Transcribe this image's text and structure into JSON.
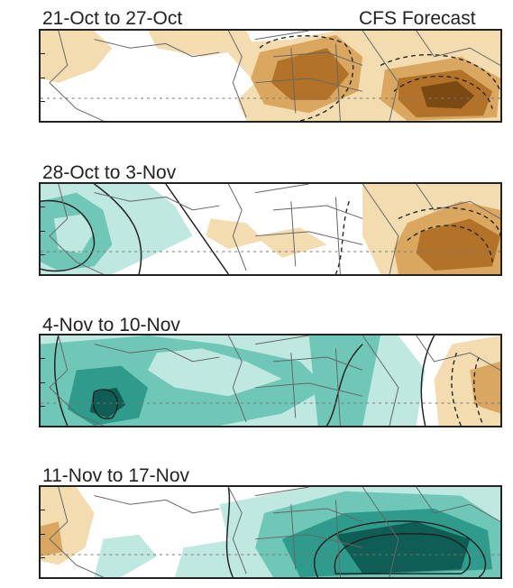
{
  "header": {
    "source_label": "CFS Forecast"
  },
  "panels": [
    {
      "period": "21-Oct to 27-Oct"
    },
    {
      "period": "28-Oct to 3-Nov"
    },
    {
      "period": "4-Nov to 10-Nov"
    },
    {
      "period": "11-Nov to 17-Nov"
    }
  ],
  "colors": {
    "dry_light": "#f3ddb0",
    "dry_mid": "#d9a75f",
    "dry_strong": "#b27329",
    "dry_darkest": "#7a4a12",
    "wet_light": "#bfe8e0",
    "wet_mid": "#6fc7b8",
    "wet_strong": "#2f9b8c",
    "wet_darkest": "#0f5e55",
    "border": "#666666",
    "contour": "#222222"
  }
}
